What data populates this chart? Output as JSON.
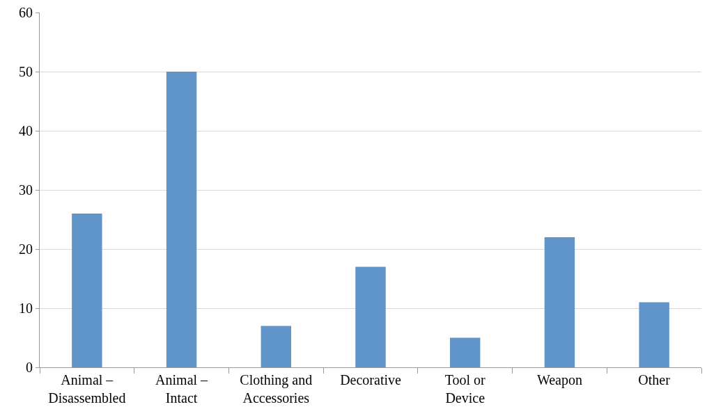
{
  "chart_data": {
    "type": "bar",
    "categories": [
      "Animal – Disassembled",
      "Animal – Intact",
      "Clothing and Accessories",
      "Decorative",
      "Tool or Device",
      "Weapon",
      "Other"
    ],
    "values": [
      26,
      50,
      7,
      17,
      5,
      22,
      11
    ],
    "color": "#6095c9",
    "ylim": [
      0,
      60
    ],
    "yticks": [
      0,
      10,
      20,
      30,
      40,
      50,
      60
    ],
    "grid": "y",
    "legend": false
  }
}
